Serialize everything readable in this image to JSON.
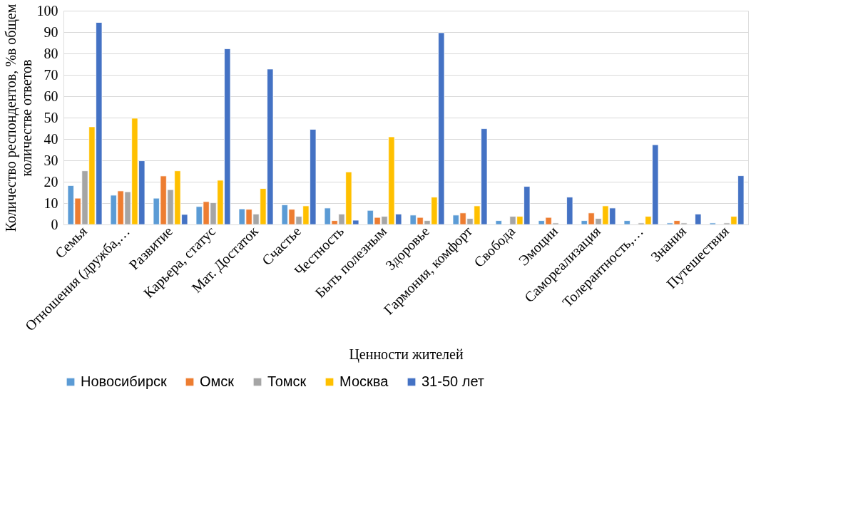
{
  "chart_data": {
    "type": "bar",
    "xlabel": "Ценности жителей",
    "ylabel": "Количество респондентов, %в общем\nколичестве ответов",
    "categories": [
      "Семья",
      "Отношения (дружба,…",
      "Развитие",
      "Карьера, статус",
      "Мат. Достаток",
      "Счастье",
      "Честность",
      "Быть полезным",
      "Здоровье",
      "Гармония, комфорт",
      "Свобода",
      "Эмоции",
      "Самореализация",
      "Толерантность,…",
      "Знания",
      "Путешествия"
    ],
    "series": [
      {
        "name": "Новосибирск",
        "color": "#5b9bd5",
        "values": [
          18.2,
          13.7,
          12.3,
          8.4,
          7.3,
          9.2,
          7.7,
          6.6,
          4.4,
          4.4,
          1.8,
          1.8,
          1.8,
          1.8,
          0.7,
          0.7
        ]
      },
      {
        "name": "Омск",
        "color": "#ed7d31",
        "values": [
          12.3,
          15.7,
          22.7,
          10.7,
          7.1,
          7.1,
          1.8,
          3.3,
          3.3,
          5.4,
          null,
          3.3,
          5.4,
          null,
          1.8,
          null
        ]
      },
      {
        "name": "Томск",
        "color": "#a5a5a5",
        "values": [
          25.1,
          15.3,
          16.3,
          10.2,
          4.9,
          3.8,
          4.9,
          3.8,
          1.8,
          2.8,
          3.8,
          0.7,
          2.8,
          0.7,
          0.7,
          0.7
        ]
      },
      {
        "name": "Москва",
        "color": "#ffc000",
        "values": [
          45.7,
          49.7,
          25.1,
          20.7,
          16.8,
          8.7,
          24.6,
          41,
          12.8,
          8.7,
          3.8,
          null,
          8.7,
          3.8,
          null,
          3.8
        ]
      },
      {
        "name": "31-50 лет",
        "color": "#4472c4",
        "values": [
          94.5,
          29.8,
          4.7,
          82.2,
          72.7,
          44.5,
          2,
          4.9,
          89.7,
          44.8,
          17.8,
          12.8,
          7.7,
          37.3,
          4.9,
          22.8
        ]
      }
    ],
    "ylim": [
      0,
      100
    ],
    "yticks": [
      0,
      10,
      20,
      30,
      40,
      50,
      60,
      70,
      80,
      90,
      100
    ],
    "grid": "y",
    "legend": "bottom"
  }
}
